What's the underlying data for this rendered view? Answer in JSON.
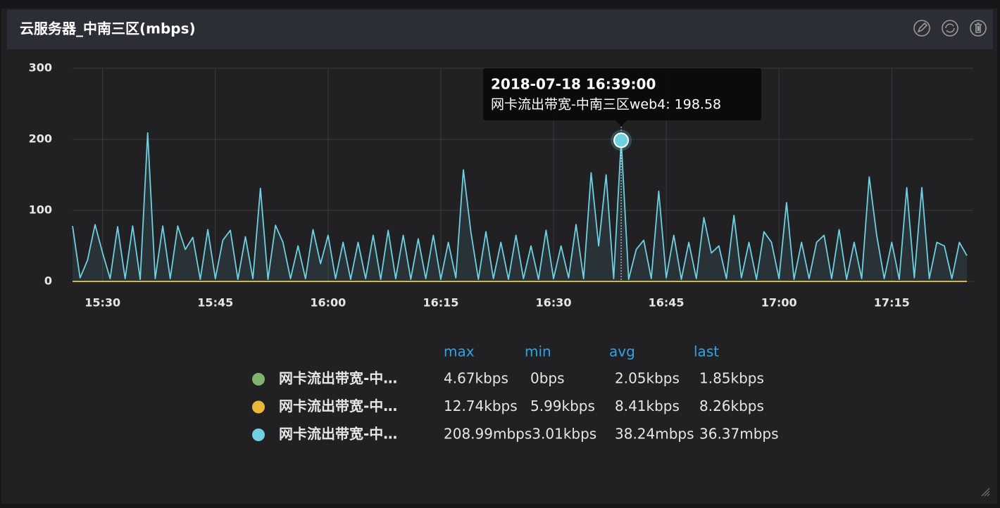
{
  "chart_data": {
    "type": "line",
    "title": "云服务器_中南三区(mbps)",
    "x": [
      "15:26",
      "15:27",
      "15:28",
      "15:29",
      "15:30",
      "15:31",
      "15:32",
      "15:33",
      "15:34",
      "15:35",
      "15:36",
      "15:37",
      "15:38",
      "15:39",
      "15:40",
      "15:41",
      "15:42",
      "15:43",
      "15:44",
      "15:45",
      "15:46",
      "15:47",
      "15:48",
      "15:49",
      "15:50",
      "15:51",
      "15:52",
      "15:53",
      "15:54",
      "15:55",
      "15:56",
      "15:57",
      "15:58",
      "15:59",
      "16:00",
      "16:01",
      "16:02",
      "16:03",
      "16:04",
      "16:05",
      "16:06",
      "16:07",
      "16:08",
      "16:09",
      "16:10",
      "16:11",
      "16:12",
      "16:13",
      "16:14",
      "16:15",
      "16:16",
      "16:17",
      "16:18",
      "16:19",
      "16:20",
      "16:21",
      "16:22",
      "16:23",
      "16:24",
      "16:25",
      "16:26",
      "16:27",
      "16:28",
      "16:29",
      "16:30",
      "16:31",
      "16:32",
      "16:33",
      "16:34",
      "16:35",
      "16:36",
      "16:37",
      "16:38",
      "16:39",
      "16:40",
      "16:41",
      "16:42",
      "16:43",
      "16:44",
      "16:45",
      "16:46",
      "16:47",
      "16:48",
      "16:49",
      "16:50",
      "16:51",
      "16:52",
      "16:53",
      "16:54",
      "16:55",
      "16:56",
      "16:57",
      "16:58",
      "16:59",
      "17:00",
      "17:01",
      "17:02",
      "17:03",
      "17:04",
      "17:05",
      "17:06",
      "17:07",
      "17:08",
      "17:09",
      "17:10",
      "17:11",
      "17:12",
      "17:13",
      "17:14",
      "17:15",
      "17:16",
      "17:17",
      "17:18",
      "17:19",
      "17:20",
      "17:21",
      "17:22",
      "17:23",
      "17:24",
      "17:25"
    ],
    "xticks": [
      "15:30",
      "15:45",
      "16:00",
      "16:15",
      "16:30",
      "16:45",
      "17:00",
      "17:15"
    ],
    "ylim": [
      0,
      300
    ],
    "yticks": [
      0,
      100,
      200,
      300
    ],
    "grid": true,
    "series": [
      {
        "name": "网卡流出带宽-中…",
        "color": "#7eb26d",
        "values": [
          0.002,
          0.002,
          0.002,
          0.002,
          0.002,
          0.002,
          0.002,
          0.002,
          0.002,
          0.002,
          0.002,
          0.002,
          0.002,
          0.002,
          0.002,
          0.002,
          0.002,
          0.002,
          0.002,
          0.002,
          0.002,
          0.002,
          0.002,
          0.002,
          0.002,
          0.002,
          0.002,
          0.002,
          0.002,
          0.002,
          0.002,
          0.002,
          0.002,
          0.002,
          0.002,
          0.002,
          0.002,
          0.002,
          0.002,
          0.002,
          0.002,
          0.002,
          0.002,
          0.002,
          0.002,
          0.002,
          0.002,
          0.002,
          0.002,
          0.002,
          0.002,
          0.002,
          0.002,
          0.002,
          0.002,
          0.002,
          0.002,
          0.002,
          0.002,
          0.002,
          0.002,
          0.002,
          0.002,
          0.002,
          0.002,
          0.002,
          0.002,
          0.002,
          0.002,
          0.002,
          0.002,
          0.002,
          0.002,
          0.002,
          0.002,
          0.002,
          0.002,
          0.002,
          0.002,
          0.002,
          0.002,
          0.002,
          0.002,
          0.002,
          0.002,
          0.002,
          0.002,
          0.002,
          0.002,
          0.002,
          0.002,
          0.002,
          0.002,
          0.002,
          0.002,
          0.002,
          0.002,
          0.002,
          0.002,
          0.002,
          0.002,
          0.002,
          0.002,
          0.002,
          0.002,
          0.002,
          0.002,
          0.002,
          0.002,
          0.002,
          0.002,
          0.002,
          0.002,
          0.002,
          0.002,
          0.002,
          0.002,
          0.002,
          0.002,
          0.002
        ],
        "stats": [
          "4.67kbps",
          "0bps",
          "2.05kbps",
          "1.85kbps"
        ]
      },
      {
        "name": "网卡流出带宽-中…",
        "color": "#eab839",
        "values": [
          0.008,
          0.008,
          0.008,
          0.008,
          0.008,
          0.008,
          0.008,
          0.008,
          0.008,
          0.008,
          0.008,
          0.008,
          0.008,
          0.008,
          0.008,
          0.008,
          0.008,
          0.008,
          0.008,
          0.008,
          0.008,
          0.008,
          0.008,
          0.008,
          0.008,
          0.008,
          0.008,
          0.008,
          0.008,
          0.008,
          0.008,
          0.008,
          0.008,
          0.008,
          0.008,
          0.008,
          0.008,
          0.008,
          0.008,
          0.008,
          0.008,
          0.008,
          0.008,
          0.008,
          0.008,
          0.008,
          0.008,
          0.008,
          0.008,
          0.008,
          0.008,
          0.008,
          0.008,
          0.008,
          0.008,
          0.008,
          0.008,
          0.008,
          0.008,
          0.008,
          0.008,
          0.008,
          0.008,
          0.008,
          0.008,
          0.008,
          0.008,
          0.008,
          0.008,
          0.008,
          0.008,
          0.008,
          0.008,
          0.008,
          0.008,
          0.008,
          0.008,
          0.008,
          0.008,
          0.008,
          0.008,
          0.008,
          0.008,
          0.008,
          0.008,
          0.008,
          0.008,
          0.008,
          0.008,
          0.008,
          0.008,
          0.008,
          0.008,
          0.008,
          0.008,
          0.008,
          0.008,
          0.008,
          0.008,
          0.008,
          0.008,
          0.008,
          0.008,
          0.008,
          0.008,
          0.008,
          0.008,
          0.008,
          0.008,
          0.008,
          0.008,
          0.008,
          0.008,
          0.008,
          0.008,
          0.008,
          0.008,
          0.008,
          0.008,
          0.008
        ],
        "stats": [
          "12.74kbps",
          "5.99kbps",
          "8.41kbps",
          "8.26kbps"
        ]
      },
      {
        "name": "网卡流出带宽-中…",
        "color": "#6ed0e0",
        "values": [
          78,
          5,
          30,
          80,
          40,
          4,
          77,
          4,
          78,
          3,
          208.99,
          4,
          78,
          4,
          78,
          45,
          62,
          3,
          73,
          4,
          58,
          72,
          3,
          63,
          4,
          131,
          3,
          79,
          55,
          4,
          50,
          4,
          73,
          25,
          65,
          4,
          55,
          3,
          55,
          4,
          65,
          3,
          72,
          4,
          65,
          3,
          60,
          4,
          65,
          3,
          55,
          5,
          157,
          70,
          3,
          70,
          4,
          55,
          3,
          65,
          4,
          50,
          3,
          72,
          4,
          50,
          5,
          80,
          4,
          153,
          50,
          150,
          4,
          198.58,
          3,
          45,
          58,
          4,
          127,
          5,
          65,
          3,
          55,
          4,
          90,
          40,
          50,
          4,
          93,
          5,
          55,
          3,
          70,
          55,
          4,
          111,
          3,
          55,
          4,
          55,
          65,
          4,
          73,
          3,
          55,
          4,
          147,
          65,
          4,
          55,
          3,
          132,
          5,
          132,
          4,
          55,
          50,
          4,
          55,
          36.37
        ],
        "stats": [
          "208.99mbps",
          "3.01kbps",
          "38.24mbps",
          "36.37mbps"
        ]
      }
    ],
    "legend_headers": [
      "max",
      "min",
      "avg",
      "last"
    ],
    "tooltip": {
      "time": "2018-07-18 16:39:00",
      "series": 2,
      "label": "网卡流出带宽-中南三区web4:"
    }
  }
}
